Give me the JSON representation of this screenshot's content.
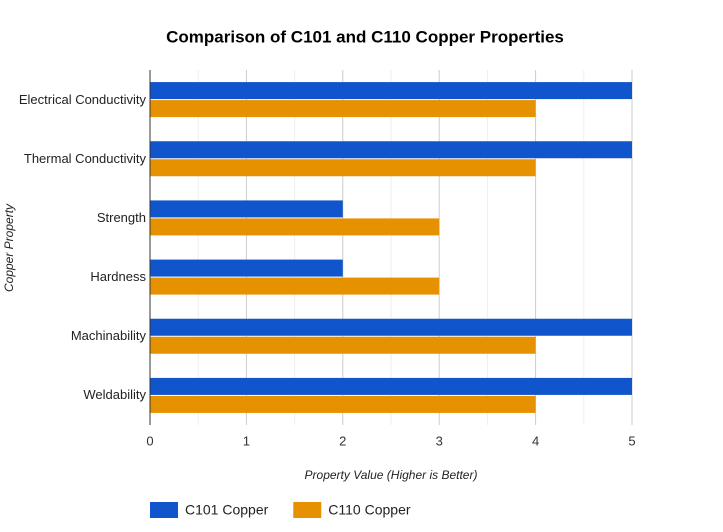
{
  "chart_data": {
    "type": "hbar",
    "title": "Comparison of C101 and C110 Copper Properties",
    "x_label": "Property Value (Higher is Better)",
    "y_label": "Copper Property",
    "categories": [
      "Electrical Conductivity",
      "Thermal Conductivity",
      "Strength",
      "Hardness",
      "Machinability",
      "Weldability"
    ],
    "series": [
      {
        "name": "C101 Copper",
        "color": "#1155cc",
        "values": [
          5,
          5,
          2,
          2,
          5,
          5
        ]
      },
      {
        "name": "C110 Copper",
        "color": "#e69100",
        "values": [
          4,
          4,
          3,
          3,
          4,
          4
        ]
      }
    ],
    "xlim": [
      0,
      5
    ],
    "xticks": [
      0,
      1,
      2,
      3,
      4,
      5
    ],
    "grid": true,
    "minor_grid": true,
    "legend": "bottom"
  }
}
